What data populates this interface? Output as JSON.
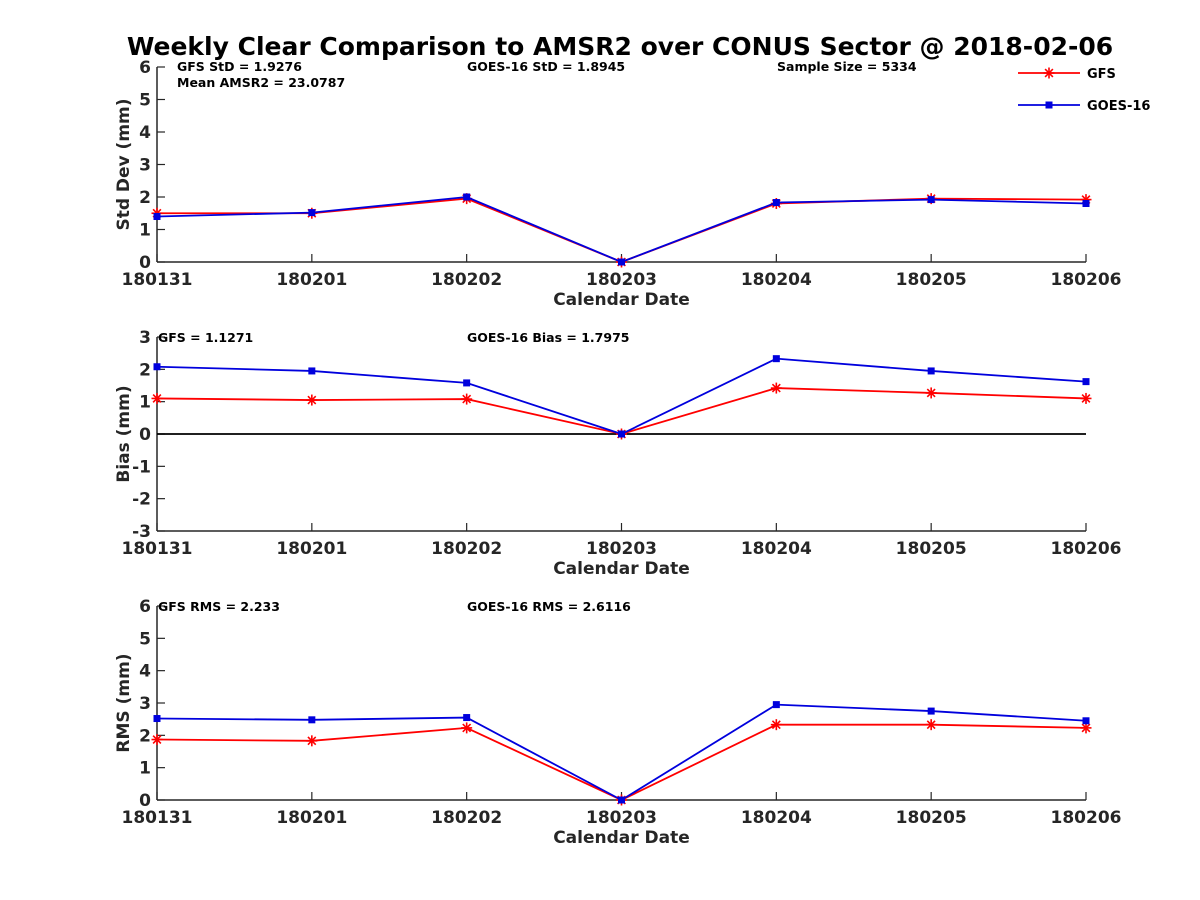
{
  "title": "Weekly Clear Comparison to AMSR2 over CONUS Sector @ 2018-02-06",
  "colors": {
    "gfs": "#ff0000",
    "goes": "#0000dd",
    "axis": "#262626",
    "zero_line": "#000000"
  },
  "legend": {
    "placement": "top-right",
    "entries": [
      "GFS",
      "GOES-16"
    ]
  },
  "chart_data": [
    {
      "type": "line",
      "xlabel": "Calendar Date",
      "ylabel": "Std Dev (mm)",
      "ylim": [
        0,
        6
      ],
      "yticks": [
        "0",
        "1",
        "2",
        "3",
        "4",
        "5",
        "6"
      ],
      "categories": [
        "180131",
        "180201",
        "180202",
        "180203",
        "180204",
        "180205",
        "180206"
      ],
      "series": [
        {
          "name": "GFS",
          "marker": "asterisk",
          "values": [
            1.5,
            1.5,
            1.95,
            0.0,
            1.8,
            1.95,
            1.92
          ]
        },
        {
          "name": "GOES-16",
          "marker": "square",
          "values": [
            1.4,
            1.52,
            2.0,
            0.0,
            1.83,
            1.92,
            1.8
          ]
        }
      ],
      "annotations": [
        "GFS StD = 1.9276",
        "Mean AMSR2 = 23.0787",
        "GOES-16 StD = 1.8945",
        "Sample Size = 5334"
      ],
      "zero_line": false
    },
    {
      "type": "line",
      "xlabel": "Calendar Date",
      "ylabel": "Bias (mm)",
      "ylim": [
        -3,
        3
      ],
      "yticks": [
        "-3",
        "-2",
        "-1",
        "0",
        "1",
        "2",
        "3"
      ],
      "categories": [
        "180131",
        "180201",
        "180202",
        "180203",
        "180204",
        "180205",
        "180206"
      ],
      "series": [
        {
          "name": "GFS",
          "marker": "asterisk",
          "values": [
            1.1,
            1.05,
            1.08,
            0.0,
            1.42,
            1.27,
            1.1
          ]
        },
        {
          "name": "GOES-16",
          "marker": "square",
          "values": [
            2.08,
            1.95,
            1.58,
            0.0,
            2.33,
            1.95,
            1.62
          ]
        }
      ],
      "annotations": [
        "GFS = 1.1271",
        "GOES-16 Bias  = 1.7975"
      ],
      "zero_line": true
    },
    {
      "type": "line",
      "xlabel": "Calendar Date",
      "ylabel": "RMS (mm)",
      "ylim": [
        0,
        6
      ],
      "yticks": [
        "0",
        "1",
        "2",
        "3",
        "4",
        "5",
        "6"
      ],
      "categories": [
        "180131",
        "180201",
        "180202",
        "180203",
        "180204",
        "180205",
        "180206"
      ],
      "series": [
        {
          "name": "GFS",
          "marker": "asterisk",
          "values": [
            1.87,
            1.83,
            2.23,
            0.0,
            2.33,
            2.33,
            2.23
          ]
        },
        {
          "name": "GOES-16",
          "marker": "square",
          "values": [
            2.52,
            2.48,
            2.55,
            0.0,
            2.95,
            2.75,
            2.45
          ]
        }
      ],
      "annotations": [
        "GFS RMS = 2.233",
        "GOES-16 RMS = 2.6116"
      ],
      "zero_line": false
    }
  ]
}
